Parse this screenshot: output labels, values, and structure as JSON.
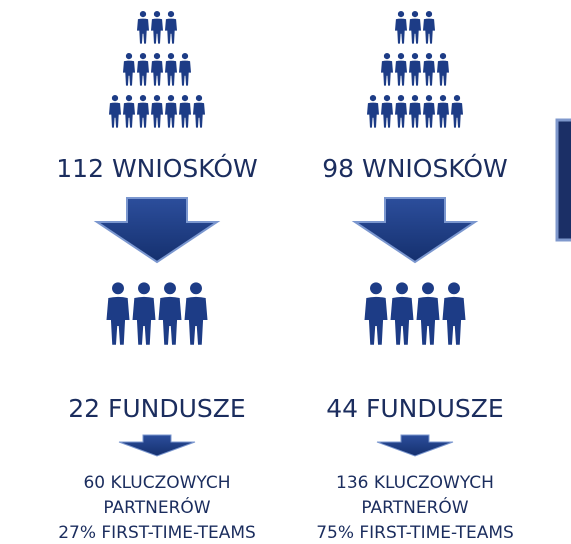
{
  "columns": [
    {
      "applications": "112 WNIOSKÓW",
      "funds": "22 FUNDUSZE",
      "details": [
        "60 KLUCZOWYCH",
        "PARTNERÓW",
        "27% FIRST-TIME-TEAMS"
      ]
    },
    {
      "applications": "98 WNIOSKÓW",
      "funds": "44 FUNDUSZE",
      "details": [
        "136 KLUCZOWYCH",
        "PARTNERÓW",
        "75% FIRST-TIME-TEAMS"
      ]
    }
  ]
}
